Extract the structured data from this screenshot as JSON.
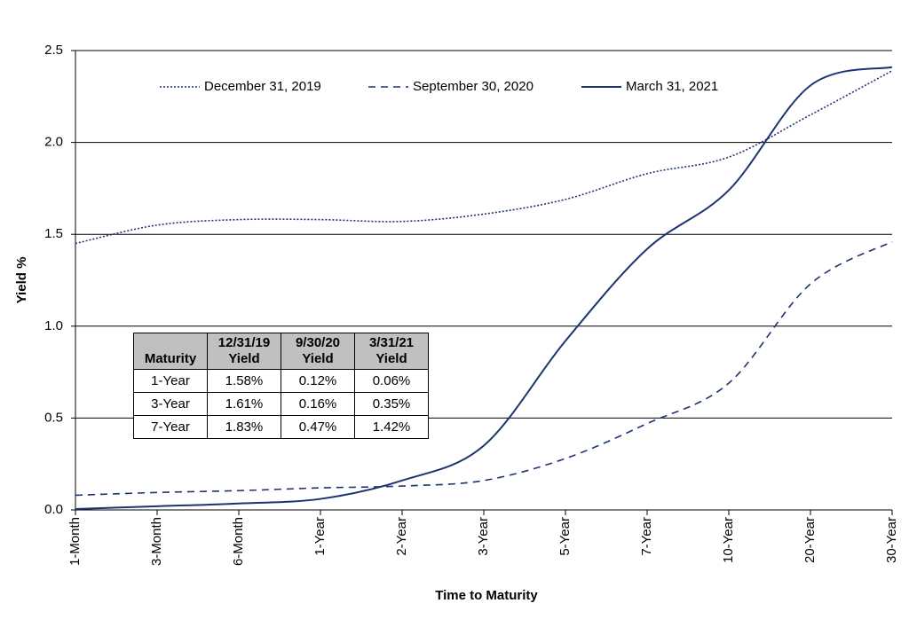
{
  "chart_data": {
    "type": "line",
    "y_label": "Yield %",
    "x_label": "Time to Maturity",
    "categories": [
      "1-Month",
      "3-Month",
      "6-Month",
      "1-Year",
      "2-Year",
      "3-Year",
      "5-Year",
      "7-Year",
      "10-Year",
      "20-Year",
      "30-Year"
    ],
    "series": [
      {
        "name": "December 31, 2019",
        "color": "#1c3470",
        "style": "dotted",
        "values": [
          1.45,
          1.55,
          1.58,
          1.58,
          1.57,
          1.61,
          1.69,
          1.83,
          1.92,
          2.15,
          2.39
        ]
      },
      {
        "name": "September 30, 2020",
        "color": "#1c3470",
        "style": "dashed",
        "values": [
          0.08,
          0.095,
          0.105,
          0.12,
          0.13,
          0.16,
          0.28,
          0.47,
          0.69,
          1.23,
          1.46
        ]
      },
      {
        "name": "March 31, 2021",
        "color": "#1c3470",
        "style": "solid",
        "values": [
          0.005,
          0.02,
          0.035,
          0.06,
          0.16,
          0.35,
          0.92,
          1.42,
          1.74,
          2.31,
          2.41
        ]
      }
    ],
    "ylim": [
      0,
      2.5
    ],
    "yticks": [
      {
        "value": 0,
        "label": "0.0"
      },
      0.5,
      {
        "value": 1,
        "label": "1.0"
      },
      1.5,
      {
        "value": 2,
        "label": "2.0"
      },
      2.5
    ],
    "grid": true,
    "legend": "top",
    "smooth": true,
    "table": {
      "header": [
        "Maturity",
        "12/31/19 Yield",
        "9/30/20 Yield",
        "3/31/21 Yield"
      ],
      "rows": [
        [
          "1-Year",
          "1.58%",
          "0.12%",
          "0.06%"
        ],
        [
          "3-Year",
          "1.61%",
          "0.16%",
          "0.35%"
        ],
        [
          "7-Year",
          "1.83%",
          "0.47%",
          "1.42%"
        ]
      ]
    }
  }
}
